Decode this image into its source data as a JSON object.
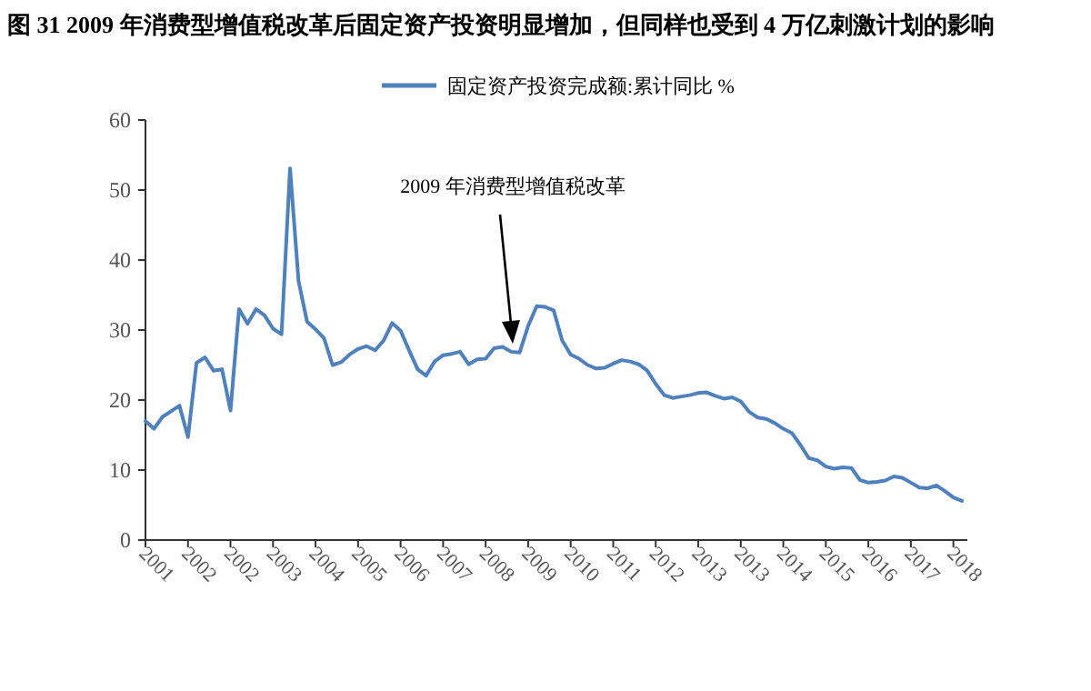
{
  "chart_data": {
    "type": "line",
    "title": "图 31 2009 年消费型增值税改革后固定资产投资明显增加，但同样也受到 4 万亿刺激计划的影响",
    "categories": [
      "2001",
      null,
      null,
      null,
      null,
      "2002",
      null,
      null,
      null,
      null,
      "2002",
      null,
      null,
      null,
      null,
      "2003",
      null,
      null,
      null,
      null,
      "2004",
      null,
      null,
      null,
      null,
      "2005",
      null,
      null,
      null,
      null,
      "2006",
      null,
      null,
      null,
      null,
      "2007",
      null,
      null,
      null,
      null,
      "2008",
      null,
      null,
      null,
      null,
      "2009",
      null,
      null,
      null,
      null,
      "2010",
      null,
      null,
      null,
      null,
      "2011",
      null,
      null,
      null,
      null,
      "2012",
      null,
      null,
      null,
      null,
      "2013",
      null,
      null,
      null,
      null,
      "2013",
      null,
      null,
      null,
      null,
      "2014",
      null,
      null,
      null,
      null,
      "2015",
      null,
      null,
      null,
      null,
      "2016",
      null,
      null,
      null,
      null,
      "2017",
      null,
      null,
      null,
      null,
      "2018",
      null
    ],
    "series": [
      {
        "name": "固定资产投资完成额:累计同比 %",
        "color": "#4f81bd",
        "values": [
          17.0,
          15.9,
          17.6,
          18.4,
          19.2,
          14.7,
          25.3,
          26.1,
          24.2,
          24.4,
          18.5,
          33.0,
          30.9,
          33.0,
          32.1,
          30.2,
          29.4,
          53.1,
          37.0,
          31.2,
          30.1,
          28.8,
          25.0,
          25.4,
          26.5,
          27.3,
          27.7,
          27.1,
          28.5,
          31.0,
          29.9,
          27.1,
          24.4,
          23.5,
          25.5,
          26.4,
          26.6,
          26.9,
          25.1,
          25.8,
          25.9,
          27.4,
          27.6,
          26.9,
          26.8,
          30.6,
          33.4,
          33.3,
          32.8,
          28.5,
          26.5,
          25.9,
          25.0,
          24.5,
          24.6,
          25.2,
          25.7,
          25.5,
          25.1,
          24.2,
          22.3,
          20.7,
          20.3,
          20.5,
          20.7,
          21.0,
          21.1,
          20.6,
          20.2,
          20.4,
          19.8,
          18.3,
          17.5,
          17.3,
          16.7,
          15.9,
          15.3,
          13.6,
          11.7,
          11.4,
          10.5,
          10.2,
          10.4,
          10.3,
          8.6,
          8.2,
          8.3,
          8.5,
          9.1,
          8.9,
          8.2,
          7.5,
          7.4,
          7.8,
          7.0,
          6.1,
          5.6
        ]
      }
    ],
    "ylim": [
      0,
      60
    ],
    "yticks": [
      0,
      10,
      20,
      30,
      40,
      50,
      60
    ],
    "annotations": [
      "2009 年消费型增值税改革"
    ],
    "grid": false,
    "legend": "top",
    "marker": "none",
    "line_style": "solid"
  }
}
